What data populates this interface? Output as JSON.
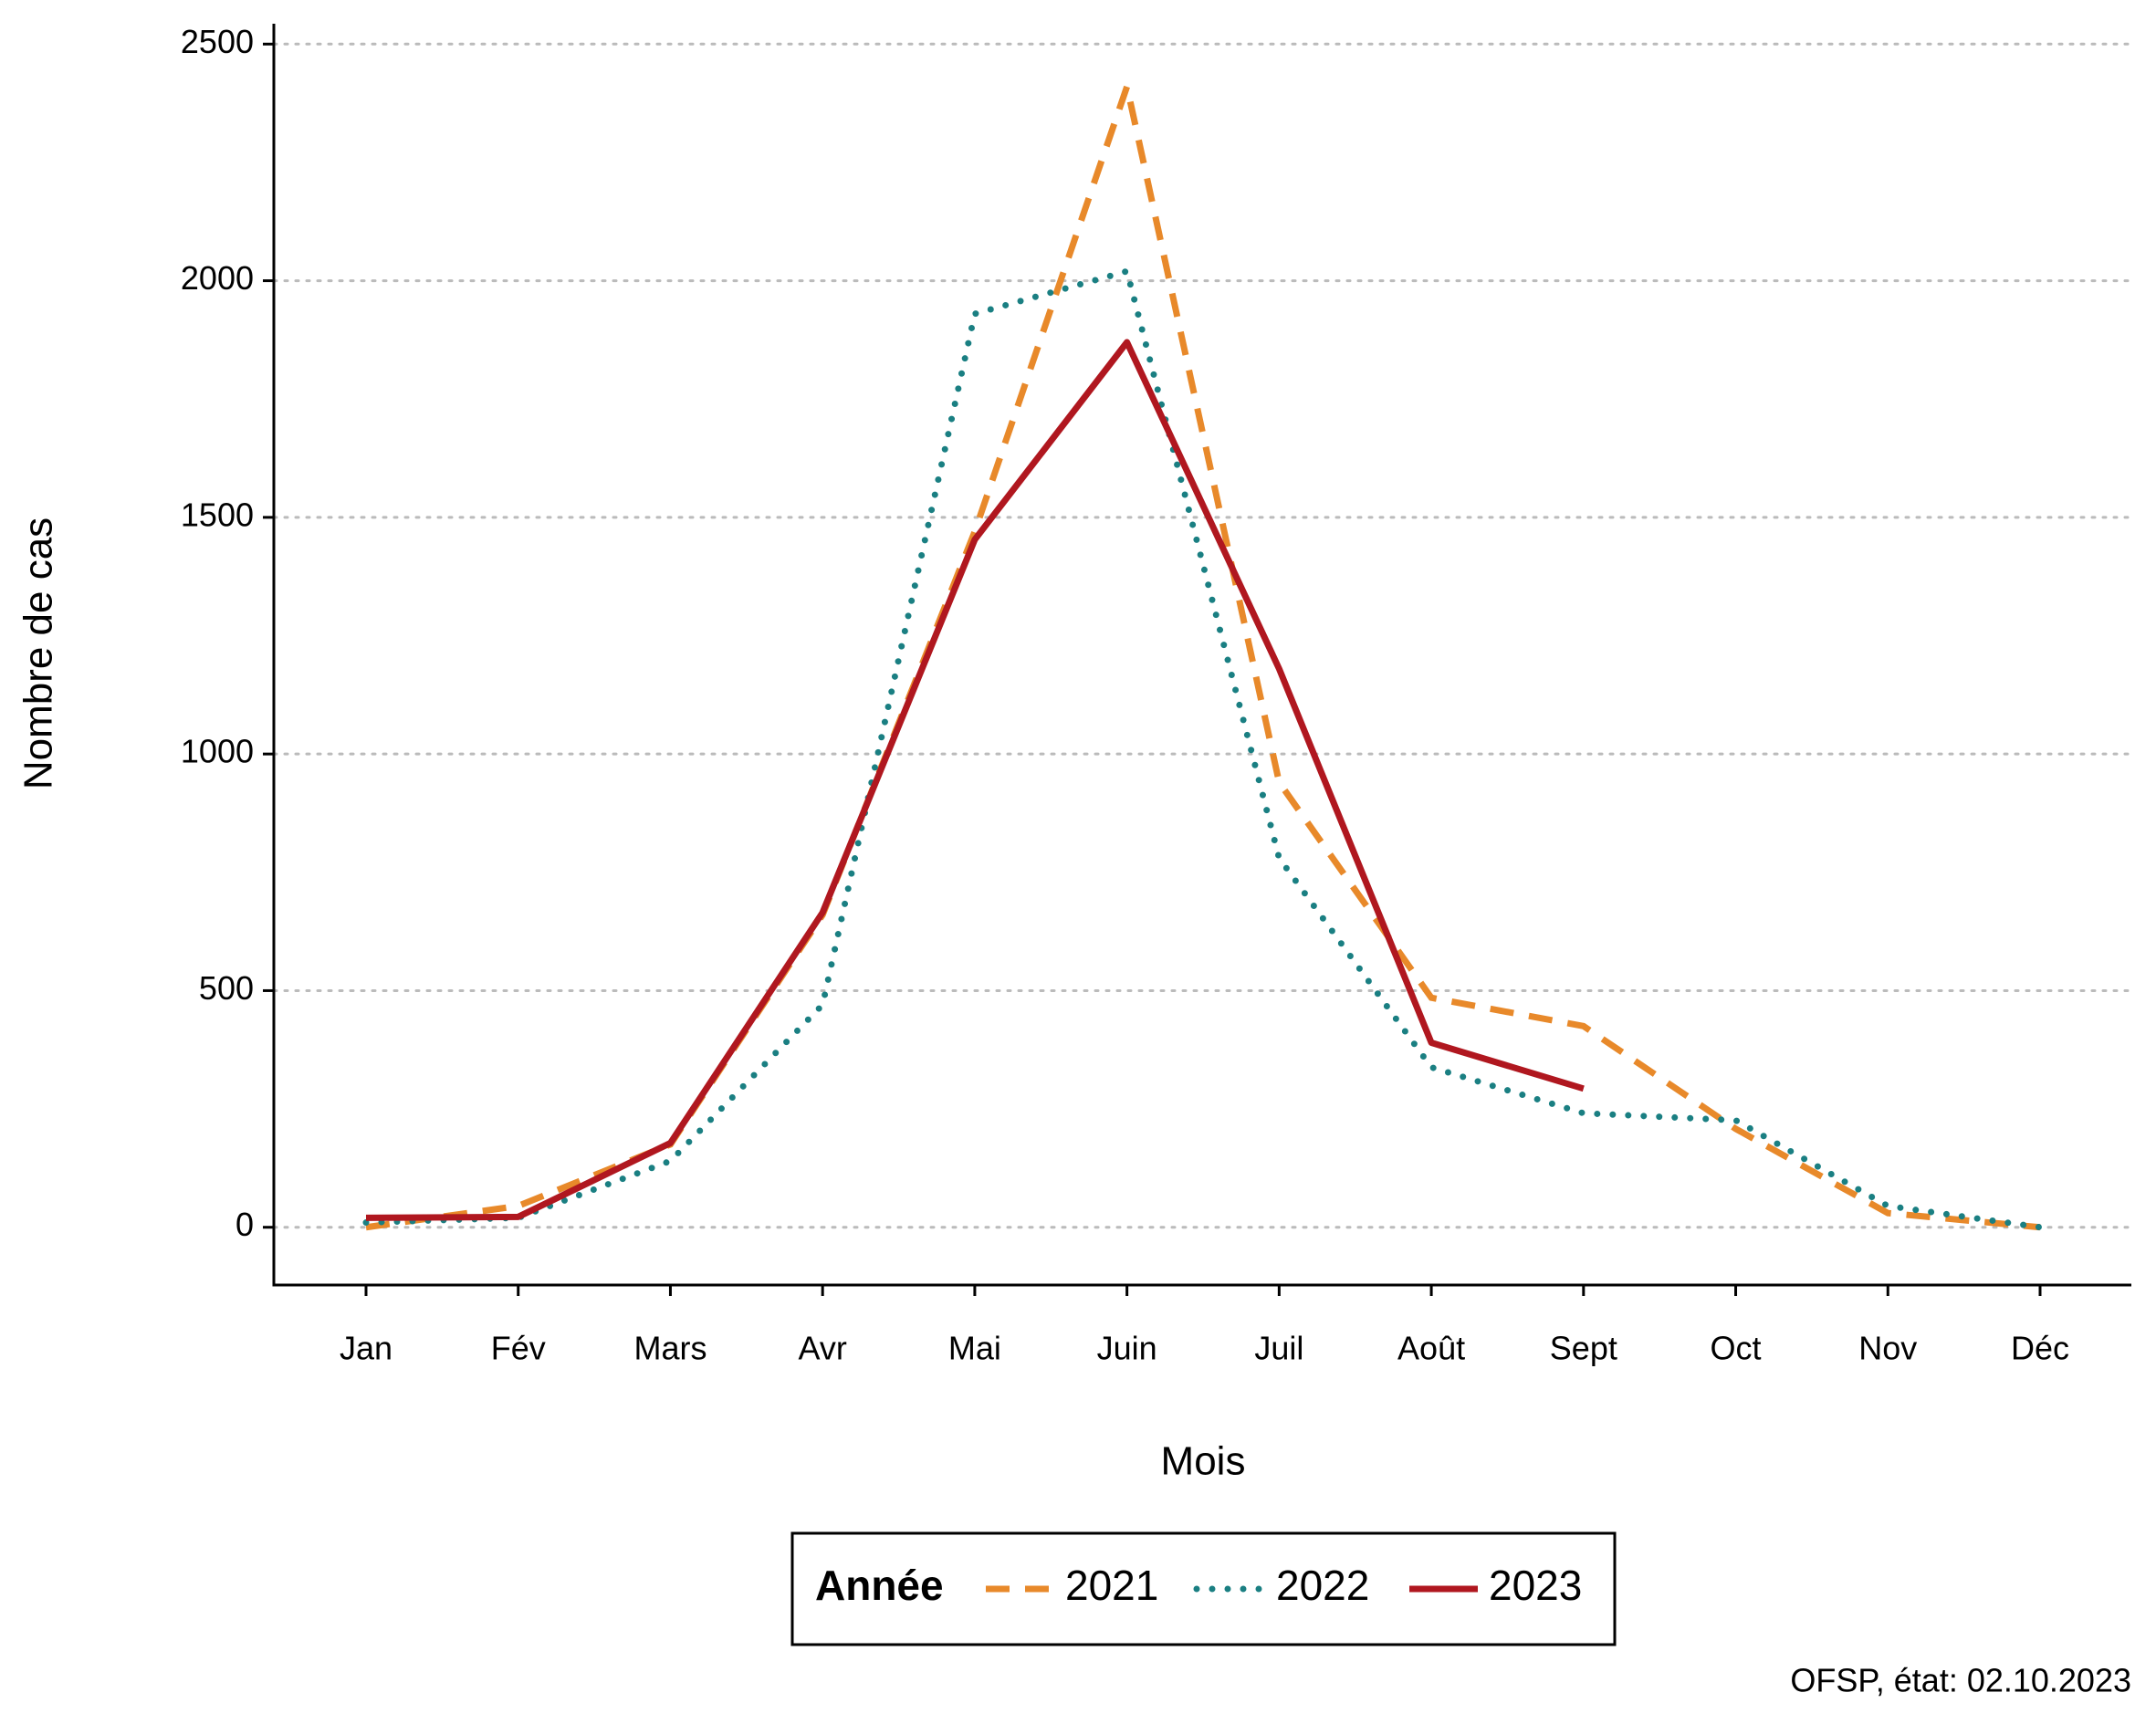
{
  "chart_data": {
    "type": "line",
    "x_label": "Mois",
    "y_label": "Nombre de cas",
    "legend_title": "Année",
    "caption": "OFSP, état: 02.10.2023",
    "categories": [
      "Jan",
      "Fév",
      "Mars",
      "Avr",
      "Mai",
      "Juin",
      "Juil",
      "Août",
      "Sept",
      "Oct",
      "Nov",
      "Déc"
    ],
    "series": [
      {
        "name": "2021",
        "color": "#e8892a",
        "dash": "dashed",
        "values": [
          0,
          45,
          175,
          660,
          1470,
          2410,
          940,
          485,
          425,
          208,
          30,
          0
        ]
      },
      {
        "name": "2022",
        "color": "#1a7f82",
        "dash": "dotted",
        "values": [
          10,
          20,
          140,
          470,
          1930,
          2020,
          780,
          338,
          241,
          226,
          45,
          0
        ]
      },
      {
        "name": "2023",
        "color": "#b0171f",
        "dash": "solid",
        "values": [
          20,
          22,
          178,
          665,
          1453,
          1870,
          1180,
          390,
          293,
          null,
          null,
          null
        ]
      }
    ],
    "ylim": [
      -122,
      2543
    ],
    "yticks": [
      0,
      500,
      1000,
      1500,
      2000,
      2500
    ],
    "grid": true,
    "legend": "bottom"
  }
}
